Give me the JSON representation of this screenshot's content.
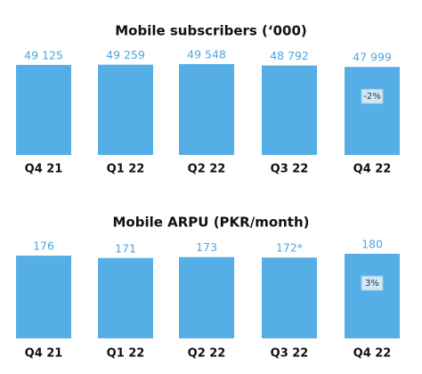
{
  "chart_data": [
    {
      "type": "bar",
      "title": "Mobile subscribers (‘000)",
      "categories": [
        "Q4 21",
        "Q1 22",
        "Q2 22",
        "Q3 22",
        "Q4 22"
      ],
      "values": [
        49125,
        49259,
        49548,
        48792,
        47999
      ],
      "value_labels": [
        "49 125",
        "49 259",
        "49 548",
        "48 792",
        "47 999"
      ],
      "bar_labels": [
        null,
        null,
        null,
        null,
        "-2%"
      ],
      "color": "#55aee6"
    },
    {
      "type": "bar",
      "title": "Mobile ARPU (PKR/month)",
      "categories": [
        "Q4 21",
        "Q1 22",
        "Q2 22",
        "Q3 22",
        "Q4 22"
      ],
      "values": [
        176,
        171,
        173,
        172,
        180
      ],
      "value_labels": [
        "176",
        "171",
        "173",
        "172*",
        "180"
      ],
      "bar_labels": [
        null,
        null,
        null,
        null,
        "3%"
      ],
      "color": "#55aee6"
    }
  ]
}
